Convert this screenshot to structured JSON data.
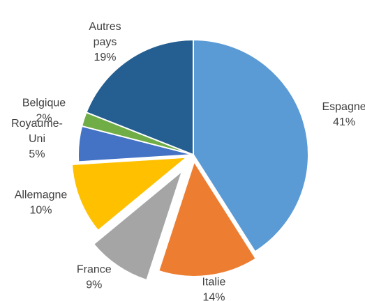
{
  "chart_data": {
    "type": "pie",
    "categories": [
      "Espagne",
      "Italie",
      "France",
      "Allemagne",
      "Royaume-Uni",
      "Belgique",
      "Autres pays"
    ],
    "values": [
      41,
      14,
      9,
      10,
      5,
      2,
      19
    ],
    "value_labels": [
      "41%",
      "14%",
      "9%",
      "10%",
      "5%",
      "2%",
      "19%"
    ],
    "colors": [
      "#5b9bd5",
      "#ed7d31",
      "#a5a5a5",
      "#ffc000",
      "#4472c4",
      "#70ad47",
      "#255e91"
    ]
  }
}
